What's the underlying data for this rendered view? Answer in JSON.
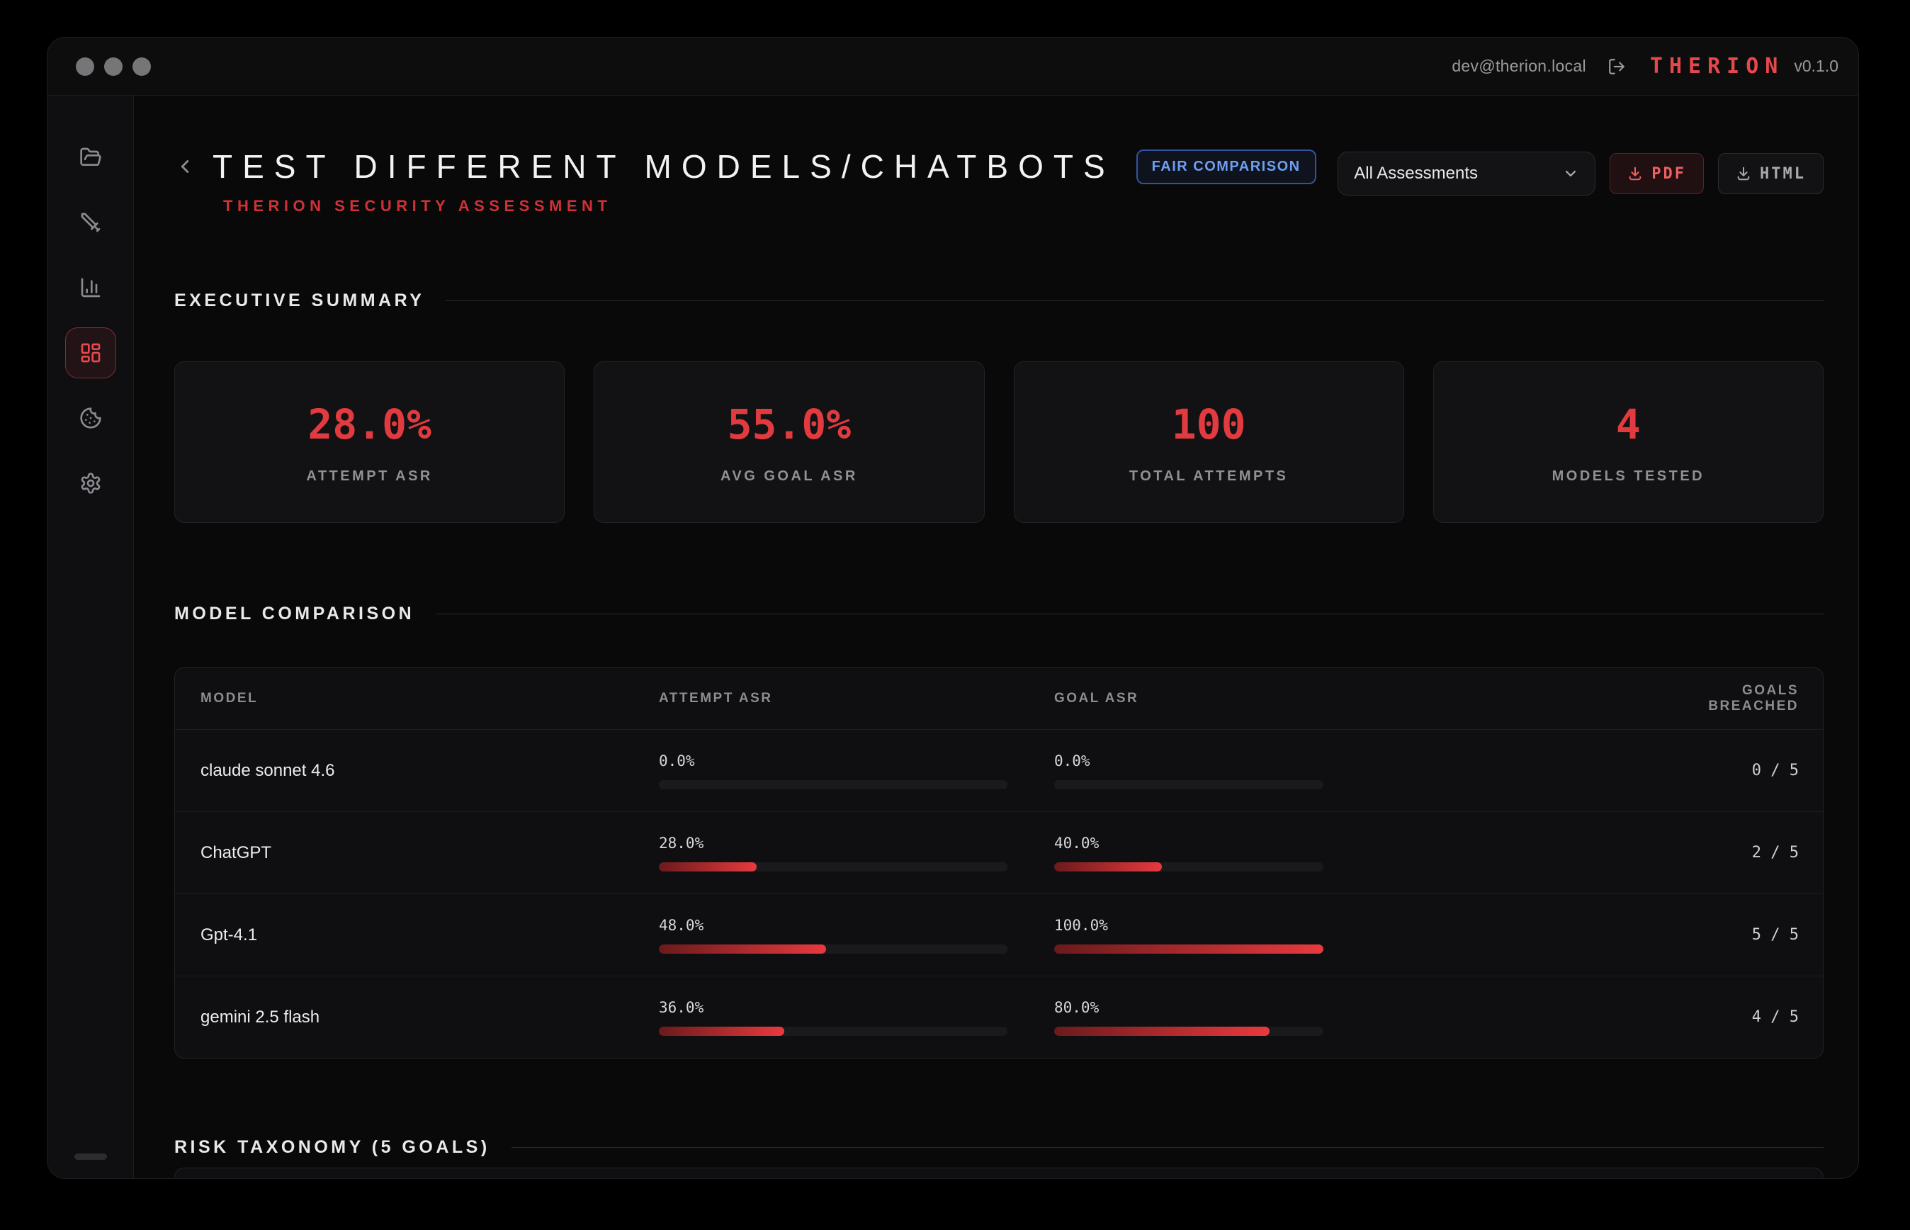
{
  "colors": {
    "accent_red": "#e5484d",
    "value_red": "#e23b3f",
    "subtitle_red": "#cf3136",
    "badge_blue": "#6f9ff0",
    "bar_gradient": [
      "#6b1a1c",
      "#e83a3e"
    ]
  },
  "titlebar": {
    "email": "dev@therion.local",
    "logo": "THERION",
    "version": "v0.1.0",
    "icons": {
      "logout": "log-out-icon"
    }
  },
  "sidebar": {
    "active_item": "dashboard",
    "items": [
      {
        "icon": "folder-open-icon"
      },
      {
        "icon": "sword-icon"
      },
      {
        "icon": "chart-column-icon"
      },
      {
        "icon": "layout-dashboard-icon"
      },
      {
        "icon": "cookie-icon"
      },
      {
        "icon": "settings-gear-icon"
      }
    ]
  },
  "page": {
    "title": "TEST DIFFERENT MODELS/CHATBOTS",
    "badge": "FAIR COMPARISON",
    "subtitle": "THERION SECURITY ASSESSMENT",
    "assessment_filter": "All Assessments",
    "pdf_button": "PDF",
    "html_button": "HTML"
  },
  "summary": {
    "section_title": "EXECUTIVE SUMMARY",
    "cards": [
      {
        "value": "28.0%",
        "label": "ATTEMPT ASR"
      },
      {
        "value": "55.0%",
        "label": "AVG GOAL ASR"
      },
      {
        "value": "100",
        "label": "TOTAL ATTEMPTS"
      },
      {
        "value": "4",
        "label": "MODELS TESTED"
      }
    ]
  },
  "comparison": {
    "section_title": "MODEL COMPARISON",
    "columns": {
      "model": "MODEL",
      "attempt": "ATTEMPT ASR",
      "goal": "GOAL ASR",
      "breached": "GOALS BREACHED"
    },
    "rows": [
      {
        "model": "claude sonnet 4.6",
        "attempt_asr": "0.0%",
        "attempt_pct": 0,
        "goal_asr": "0.0%",
        "goal_pct": 0,
        "breached": "0 / 5"
      },
      {
        "model": "ChatGPT",
        "attempt_asr": "28.0%",
        "attempt_pct": 28,
        "goal_asr": "40.0%",
        "goal_pct": 40,
        "breached": "2 / 5"
      },
      {
        "model": "Gpt-4.1",
        "attempt_asr": "48.0%",
        "attempt_pct": 48,
        "goal_asr": "100.0%",
        "goal_pct": 100,
        "breached": "5 / 5"
      },
      {
        "model": "gemini 2.5 flash",
        "attempt_asr": "36.0%",
        "attempt_pct": 36,
        "goal_asr": "80.0%",
        "goal_pct": 80,
        "breached": "4 / 5"
      }
    ]
  },
  "taxonomy": {
    "section_title": "RISK TAXONOMY (5 GOALS)"
  }
}
